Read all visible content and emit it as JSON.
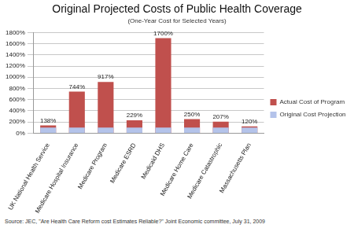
{
  "chart_data": {
    "type": "bar",
    "title": "Original Projected Costs of Public Health Coverage",
    "subtitle": "(One-Year Cost for Selected Years)",
    "source": "Source: JEC, \"Are Health Care Reform cost Estimates Reliable?\" Joint Economic committee, July 31, 2009",
    "categories": [
      "UK National Health Service",
      "Medicare Hospital Insurance",
      "Medicare Program",
      "Medicare ESRD",
      "Medicaid DHS",
      "Medicare Home Care",
      "Medicare Catastrophic",
      "Massachusetts Plan"
    ],
    "series": [
      {
        "name": "Actual Cost of Program",
        "color": "#c0504d",
        "values": [
          138,
          744,
          917,
          229,
          1700,
          250,
          207,
          120
        ],
        "value_labels": [
          "138%",
          "744%",
          "917%",
          "229%",
          "1700%",
          "250%",
          "207%",
          "120%"
        ]
      },
      {
        "name": "Original Cost Projection",
        "color": "#b4c3ea",
        "values": [
          100,
          100,
          100,
          100,
          100,
          100,
          100,
          100
        ]
      }
    ],
    "ylim": [
      0,
      1800
    ],
    "yticks": [
      {
        "value": 0,
        "label": "0%"
      },
      {
        "value": 200,
        "label": "200%"
      },
      {
        "value": 400,
        "label": "400%"
      },
      {
        "value": 600,
        "label": "600%"
      },
      {
        "value": 800,
        "label": "800%"
      },
      {
        "value": 1000,
        "label": "1000%"
      },
      {
        "value": 1200,
        "label": "1200%"
      },
      {
        "value": 1400,
        "label": "1400%"
      },
      {
        "value": 1600,
        "label": "1600%"
      },
      {
        "value": 1800,
        "label": "1800%"
      }
    ],
    "grid": true,
    "legend": "right",
    "data_labels": true
  }
}
